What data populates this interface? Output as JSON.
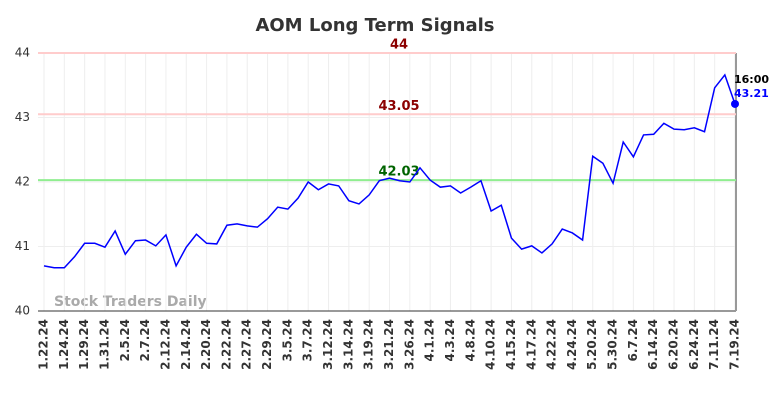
{
  "chart_data": {
    "type": "line",
    "title": "AOM Long Term Signals",
    "categories": [
      "1.22.24",
      null,
      "1.24.24",
      null,
      "1.29.24",
      null,
      "1.31.24",
      null,
      "2.5.24",
      null,
      "2.7.24",
      null,
      "2.12.24",
      null,
      "2.14.24",
      null,
      "2.20.24",
      null,
      "2.22.24",
      null,
      "2.27.24",
      null,
      "2.29.24",
      null,
      "3.5.24",
      null,
      "3.7.24",
      null,
      "3.12.24",
      null,
      "3.14.24",
      null,
      "3.19.24",
      null,
      "3.21.24",
      null,
      "3.26.24",
      null,
      "4.1.24",
      null,
      "4.3.24",
      null,
      "4.8.24",
      null,
      "4.10.24",
      null,
      "4.15.24",
      null,
      "4.17.24",
      null,
      "4.22.24",
      null,
      "4.24.24",
      null,
      "5.20.24",
      null,
      "5.30.24",
      null,
      "6.7.24",
      null,
      "6.14.24",
      null,
      "6.20.24",
      null,
      "6.24.24",
      null,
      "7.11.24",
      null,
      "7.19.24"
    ],
    "values": [
      40.7,
      40.67,
      40.67,
      40.84,
      41.05,
      41.05,
      40.99,
      41.24,
      40.88,
      41.09,
      41.1,
      41.01,
      41.18,
      40.7,
      40.99,
      41.19,
      41.05,
      41.04,
      41.33,
      41.35,
      41.32,
      41.3,
      41.43,
      41.61,
      41.58,
      41.75,
      42.0,
      41.88,
      41.97,
      41.94,
      41.71,
      41.66,
      41.8,
      42.02,
      42.06,
      42.02,
      42.0,
      42.22,
      42.03,
      41.92,
      41.94,
      41.83,
      41.92,
      42.02,
      41.55,
      41.64,
      41.13,
      40.96,
      41.01,
      40.9,
      41.04,
      41.27,
      41.21,
      41.1,
      42.4,
      42.29,
      41.98,
      42.62,
      42.39,
      42.73,
      42.74,
      42.91,
      42.82,
      42.81,
      42.84,
      42.78,
      43.46,
      43.66,
      43.21
    ],
    "color": "#0000ff",
    "ylim": [
      40,
      44
    ],
    "yticks": [
      40,
      41,
      42,
      43,
      44
    ],
    "grid": true,
    "reference_lines": [
      {
        "value": 44,
        "color": "#ffcccc",
        "label_color": "#8b0000"
      },
      {
        "value": 43.05,
        "color": "#ffcccc",
        "label_color": "#8b0000"
      },
      {
        "value": 42.03,
        "color": "#90ee90",
        "label_color": "#006400"
      }
    ],
    "last_time": "16:00",
    "watermark": "Stock Traders Daily"
  }
}
